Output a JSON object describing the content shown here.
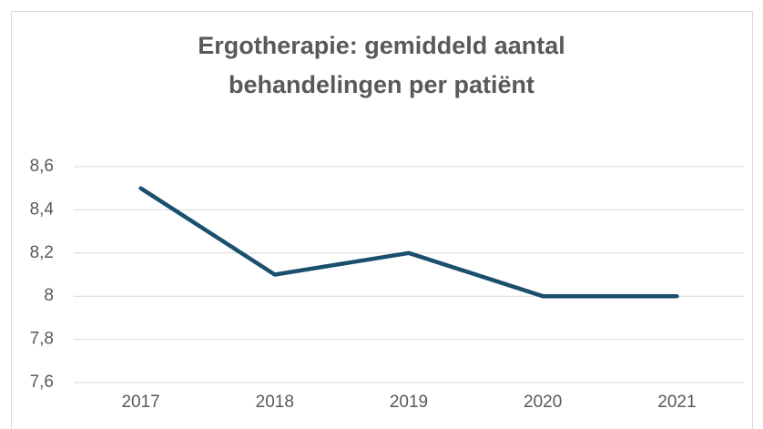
{
  "chart_data": {
    "type": "line",
    "title": [
      "Ergotherapie: gemiddeld aantal",
      "behandelingen per patiënt"
    ],
    "categories": [
      "2017",
      "2018",
      "2019",
      "2020",
      "2021"
    ],
    "series": [
      {
        "name": null,
        "color": "#1a4f6e",
        "values": [
          8.5,
          8.1,
          8.2,
          8,
          8
        ]
      }
    ],
    "ylim": [
      7.6,
      8.6
    ],
    "yticks": [
      {
        "value": 7.6,
        "label": "7,6"
      },
      {
        "value": 7.8,
        "label": "7,8"
      },
      8,
      {
        "value": 8.2,
        "label": "8,2"
      },
      {
        "value": 8.4,
        "label": "8,4"
      },
      {
        "value": 8.6,
        "label": "8,6"
      }
    ],
    "grid": true
  }
}
